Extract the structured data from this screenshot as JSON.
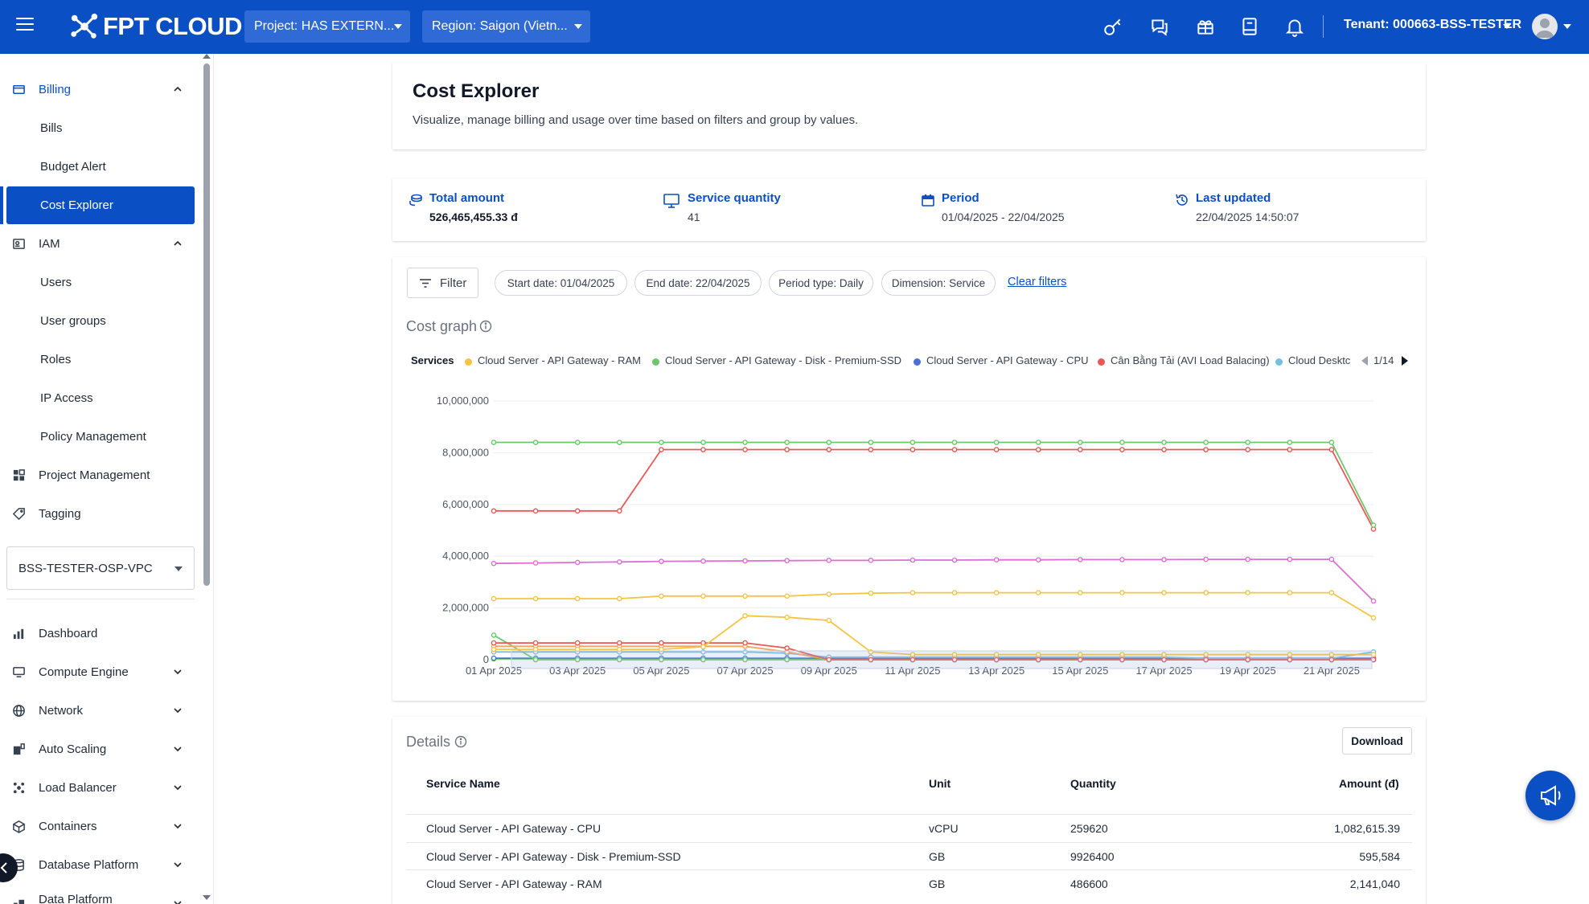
{
  "header": {
    "brand": "FPT CLOUD",
    "project_select": "Project: HAS EXTERN...",
    "region_select": "Region: Saigon (Vietn...",
    "tenant": "Tenant: 000663-BSS-TESTER"
  },
  "sidebar": {
    "billing": {
      "label": "Billing",
      "items": [
        "Bills",
        "Budget Alert",
        "Cost Explorer"
      ]
    },
    "iam": {
      "label": "IAM",
      "items": [
        "Users",
        "User groups",
        "Roles",
        "IP Access",
        "Policy Management"
      ]
    },
    "project_management": "Project Management",
    "tagging": "Tagging",
    "project_selector": "BSS-TESTER-OSP-VPC",
    "services": [
      "Dashboard",
      "Compute Engine",
      "Network",
      "Auto Scaling",
      "Load Balancer",
      "Containers",
      "Database Platform",
      "Data Platform"
    ]
  },
  "page": {
    "title": "Cost Explorer",
    "description": "Visualize, manage billing and usage over time based on filters and group by values."
  },
  "summary": {
    "total_amount": {
      "label": "Total amount",
      "value": "526,465,455.33 đ"
    },
    "service_quantity": {
      "label": "Service quantity",
      "value": "41"
    },
    "period": {
      "label": "Period",
      "value": "01/04/2025 - 22/04/2025"
    },
    "last_updated": {
      "label": "Last updated",
      "value": "22/04/2025 14:50:07"
    }
  },
  "filters": {
    "filter_button": "Filter",
    "chips": [
      "Start date: 01/04/2025",
      "End date: 22/04/2025",
      "Period type: Daily",
      "Dimension: Service"
    ],
    "clear": "Clear filters"
  },
  "cost_graph": {
    "title": "Cost graph",
    "legend_title": "Services",
    "legend_page": "1/14"
  },
  "chart_data": {
    "type": "line",
    "x": [
      "01 Apr 2025",
      "02 Apr 2025",
      "03 Apr 2025",
      "04 Apr 2025",
      "05 Apr 2025",
      "06 Apr 2025",
      "07 Apr 2025",
      "08 Apr 2025",
      "09 Apr 2025",
      "10 Apr 2025",
      "11 Apr 2025",
      "12 Apr 2025",
      "13 Apr 2025",
      "14 Apr 2025",
      "15 Apr 2025",
      "16 Apr 2025",
      "17 Apr 2025",
      "18 Apr 2025",
      "19 Apr 2025",
      "20 Apr 2025",
      "21 Apr 2025",
      "22 Apr 2025"
    ],
    "xticks": [
      "01 Apr 2025",
      "03 Apr 2025",
      "05 Apr 2025",
      "07 Apr 2025",
      "09 Apr 2025",
      "11 Apr 2025",
      "13 Apr 2025",
      "15 Apr 2025",
      "17 Apr 2025",
      "19 Apr 2025",
      "21 Apr 2025"
    ],
    "yticks": [
      "0",
      "2,000,000",
      "4,000,000",
      "6,000,000",
      "8,000,000",
      "10,000,000"
    ],
    "ylim": [
      0,
      10000000
    ],
    "legend": [
      {
        "name": "Cloud Server - API Gateway - RAM",
        "color": "#f4c542"
      },
      {
        "name": "Cloud Server - API Gateway - Disk - Premium-SSD",
        "color": "#6cc76c"
      },
      {
        "name": "Cloud Server - API Gateway - CPU",
        "color": "#4a6fd8"
      },
      {
        "name": "Cân Bằng Tải (AVI Load Balacing)",
        "color": "#ea5757"
      },
      {
        "name": "Cloud Desktc",
        "color": "#74c0e0"
      }
    ],
    "series": [
      {
        "color": "#6cc76c",
        "values": [
          8400000,
          8400000,
          8400000,
          8400000,
          8400000,
          8400000,
          8400000,
          8400000,
          8400000,
          8400000,
          8400000,
          8400000,
          8400000,
          8400000,
          8400000,
          8400000,
          8400000,
          8400000,
          8400000,
          8400000,
          8400000,
          5200000
        ]
      },
      {
        "color": "#ea5757",
        "values": [
          5750000,
          5750000,
          5750000,
          5750000,
          8120000,
          8120000,
          8120000,
          8120000,
          8120000,
          8120000,
          8120000,
          8120000,
          8120000,
          8120000,
          8120000,
          8120000,
          8120000,
          8120000,
          8120000,
          8120000,
          8120000,
          5050000
        ]
      },
      {
        "color": "#dd6fd3",
        "values": [
          3720000,
          3740000,
          3760000,
          3780000,
          3800000,
          3810000,
          3820000,
          3830000,
          3840000,
          3840000,
          3850000,
          3850000,
          3860000,
          3860000,
          3870000,
          3870000,
          3870000,
          3880000,
          3880000,
          3880000,
          3880000,
          2270000
        ]
      },
      {
        "color": "#f4c542",
        "values": [
          2360000,
          2360000,
          2360000,
          2360000,
          2460000,
          2460000,
          2460000,
          2460000,
          2530000,
          2570000,
          2590000,
          2590000,
          2590000,
          2590000,
          2590000,
          2590000,
          2590000,
          2590000,
          2590000,
          2590000,
          2590000,
          1620000
        ]
      },
      {
        "color": "#f4c542",
        "values": [
          400000,
          400000,
          400000,
          400000,
          400000,
          500000,
          1700000,
          1640000,
          1520000,
          300000,
          200000,
          200000,
          200000,
          200000,
          200000,
          200000,
          200000,
          200000,
          200000,
          200000,
          200000,
          200000
        ]
      },
      {
        "color": "#ea5757",
        "values": [
          650000,
          650000,
          650000,
          650000,
          650000,
          650000,
          650000,
          450000,
          0,
          0,
          0,
          0,
          0,
          0,
          0,
          0,
          0,
          0,
          0,
          0,
          0,
          0
        ]
      },
      {
        "color": "#f2a65a",
        "values": [
          520000,
          520000,
          520000,
          520000,
          520000,
          520000,
          520000,
          300000,
          0,
          0,
          0,
          0,
          0,
          0,
          0,
          0,
          0,
          0,
          0,
          0,
          0,
          0
        ]
      },
      {
        "color": "#6cc76c",
        "values": [
          950000,
          0,
          0,
          0,
          0,
          0,
          0,
          0,
          0,
          0,
          0,
          0,
          0,
          0,
          0,
          0,
          0,
          0,
          0,
          0,
          0,
          0
        ]
      },
      {
        "color": "#74c0e0",
        "values": [
          300000,
          300000,
          300000,
          300000,
          300000,
          300000,
          300000,
          250000,
          100000,
          100000,
          100000,
          100000,
          100000,
          100000,
          100000,
          100000,
          100000,
          50000,
          50000,
          50000,
          50000,
          300000
        ]
      },
      {
        "color": "#4a6fd8",
        "values": [
          60000,
          60000,
          60000,
          60000,
          60000,
          60000,
          60000,
          60000,
          60000,
          60000,
          60000,
          60000,
          60000,
          60000,
          60000,
          60000,
          60000,
          60000,
          60000,
          60000,
          60000,
          60000
        ]
      },
      {
        "color": "#6cc76c",
        "values": [
          30000,
          30000,
          30000,
          30000,
          30000,
          30000,
          30000,
          30000,
          30000,
          30000,
          30000,
          30000,
          30000,
          30000,
          30000,
          30000,
          30000,
          30000,
          30000,
          30000,
          30000,
          30000
        ]
      }
    ]
  },
  "details": {
    "title": "Details",
    "download": "Download",
    "columns": [
      "Service Name",
      "Unit",
      "Quantity",
      "Amount (đ)"
    ],
    "rows": [
      [
        "Cloud Server - API Gateway - CPU",
        "vCPU",
        "259620",
        "1,082,615.39"
      ],
      [
        "Cloud Server - API Gateway - Disk - Premium-SSD",
        "GB",
        "9926400",
        "595,584"
      ],
      [
        "Cloud Server - API Gateway - RAM",
        "GB",
        "486600",
        "2,141,040"
      ]
    ]
  }
}
